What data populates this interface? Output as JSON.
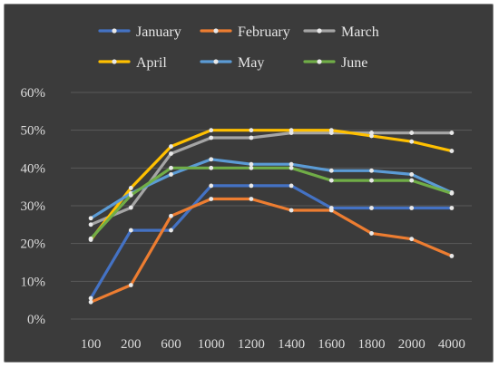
{
  "chart_data": {
    "type": "line",
    "categories": [
      "100",
      "200",
      "600",
      "1000",
      "1200",
      "1400",
      "1600",
      "1800",
      "2000",
      "4000"
    ],
    "ylim": [
      0,
      60
    ],
    "y_ticks": [
      "0%",
      "10%",
      "20%",
      "30%",
      "40%",
      "50%",
      "60%"
    ],
    "grid": true,
    "legend_position": "top",
    "series": [
      {
        "name": "January",
        "color": "#4472c4",
        "values": [
          5.5,
          23.5,
          23.5,
          35.3,
          35.3,
          35.3,
          29.4,
          29.4,
          29.4,
          29.4
        ]
      },
      {
        "name": "February",
        "color": "#ed7d31",
        "values": [
          4.5,
          9.0,
          27.3,
          31.8,
          31.8,
          28.8,
          28.8,
          22.7,
          21.2,
          16.7
        ]
      },
      {
        "name": "March",
        "color": "#a5a5a5",
        "values": [
          25.0,
          29.5,
          43.8,
          48.0,
          48.0,
          49.3,
          49.3,
          49.3,
          49.3,
          49.3
        ]
      },
      {
        "name": "April",
        "color": "#ffc000",
        "values": [
          21.0,
          34.7,
          45.7,
          50.0,
          50.0,
          50.0,
          50.0,
          48.5,
          47.0,
          44.5
        ]
      },
      {
        "name": "May",
        "color": "#5b9bd5",
        "values": [
          26.7,
          33.3,
          38.3,
          42.3,
          41.0,
          41.0,
          39.3,
          39.3,
          38.3,
          33.5
        ]
      },
      {
        "name": "June",
        "color": "#70ad47",
        "values": [
          21.3,
          32.8,
          40.0,
          40.0,
          40.0,
          40.0,
          36.7,
          36.7,
          36.7,
          33.3
        ]
      }
    ]
  }
}
